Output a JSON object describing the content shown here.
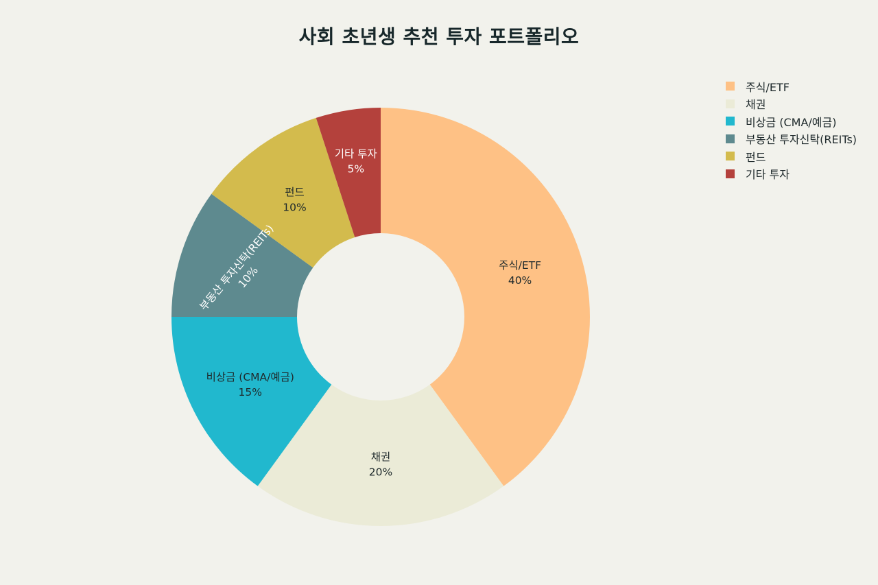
{
  "chart_data": {
    "type": "pie",
    "hole": true,
    "title": "사회 초년생 추천 투자 포트폴리오",
    "categories": [
      "주식/ETF",
      "채권",
      "비상금 (CMA/예금)",
      "부동산 투자신탁(REITs)",
      "펀드",
      "기타 투자"
    ],
    "values": [
      40,
      20,
      15,
      10,
      10,
      5
    ],
    "percent_labels": [
      "40%",
      "20%",
      "15%",
      "10%",
      "10%",
      "5%"
    ],
    "colors": [
      "#fec185",
      "#ebebd7",
      "#21b8ce",
      "#5e8a8f",
      "#d3bb4d",
      "#b4413c"
    ],
    "label_colors": [
      "#1f2a2c",
      "#1f2a2c",
      "#1f2a2c",
      "#ffffff",
      "#1f2a2c",
      "#ffffff"
    ],
    "legend_position": "top-right",
    "direction": "clockwise",
    "start_angle": "12 o'clock"
  }
}
